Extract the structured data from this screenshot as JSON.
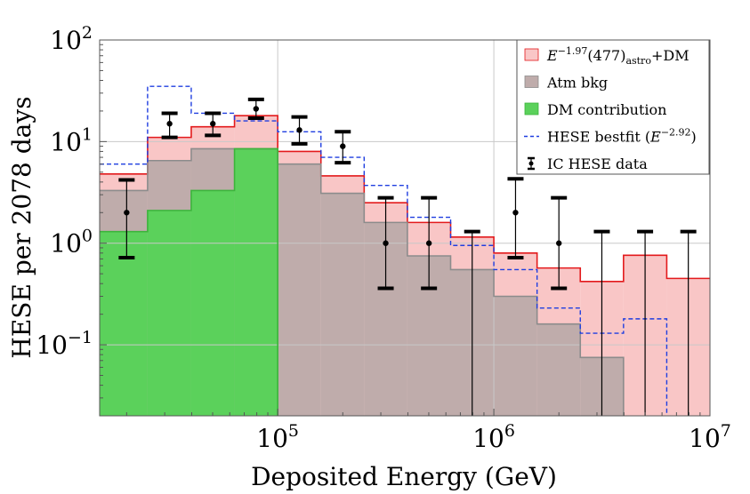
{
  "chart_data": {
    "type": "bar",
    "title": "",
    "xlabel": "Deposited Energy (GeV)",
    "ylabel": "HESE per 2078 days",
    "xscale": "log",
    "yscale": "log",
    "xlim": [
      15000,
      10000000
    ],
    "ylim": [
      0.02,
      100
    ],
    "grid": true,
    "legend_position": "top-right",
    "x_ticks": [
      {
        "value": 100000,
        "base": "10",
        "exp": "5"
      },
      {
        "value": 1000000,
        "base": "10",
        "exp": "6"
      },
      {
        "value": 10000000,
        "base": "10",
        "exp": "7"
      }
    ],
    "y_ticks": [
      {
        "value": 100,
        "base": "10",
        "exp": "2"
      },
      {
        "value": 10,
        "base": "10",
        "exp": "1"
      },
      {
        "value": 1,
        "base": "10",
        "exp": "0"
      },
      {
        "value": 0.1,
        "base": "10",
        "exp": "−1"
      }
    ],
    "bin_edges": [
      15000,
      25000,
      39800,
      63100,
      100000,
      158500,
      251200,
      398100,
      631000,
      1000000,
      1585000,
      2512000,
      3981000,
      6310000,
      10000000
    ],
    "series": [
      {
        "name": "E^{-1.97}(477)_astro+DM",
        "kind": "filled-step",
        "color": "#f9c6c6",
        "edge_color": "#e31a1c",
        "values": [
          4.8,
          11,
          14,
          18,
          8,
          4.6,
          2.5,
          1.6,
          1.15,
          0.8,
          0.57,
          0.42,
          0.76,
          0.45
        ]
      },
      {
        "name": "Atm bkg",
        "kind": "filled-step",
        "color": "#bfacab",
        "edge_color": "#8c8c8c",
        "values": [
          3.3,
          6.5,
          8.5,
          8.5,
          6.0,
          3.1,
          1.6,
          0.75,
          0.55,
          0.3,
          0.16,
          0.075,
          null,
          null
        ]
      },
      {
        "name": "DM contribution",
        "kind": "filled-step",
        "color": "#5bd15b",
        "edge_color": "#3cb43c",
        "values": [
          1.3,
          2.1,
          3.3,
          8.5,
          null,
          null,
          null,
          null,
          null,
          null,
          null,
          null,
          null,
          null
        ]
      },
      {
        "name": "HESE bestfit (E^{-2.92})",
        "kind": "dashed-step",
        "color": "#1f3ee0",
        "values": [
          6,
          35,
          19,
          16,
          12.5,
          7,
          3.7,
          1.8,
          0.95,
          0.55,
          0.23,
          0.13,
          0.18,
          null
        ]
      }
    ],
    "data_points": {
      "name": "IC HESE data",
      "points": [
        {
          "x": 20000,
          "y": 2,
          "lo": 0.72,
          "hi": 4.2
        },
        {
          "x": 31600,
          "y": 15,
          "lo": 11,
          "hi": 19
        },
        {
          "x": 50100,
          "y": 15,
          "lo": 11.5,
          "hi": 19
        },
        {
          "x": 79400,
          "y": 21,
          "lo": 17,
          "hi": 26
        },
        {
          "x": 126000,
          "y": 13,
          "lo": 9.5,
          "hi": 17.5
        },
        {
          "x": 200000,
          "y": 9,
          "lo": 6.2,
          "hi": 12.5
        },
        {
          "x": 316000,
          "y": 1,
          "lo": 0.36,
          "hi": 2.8
        },
        {
          "x": 501000,
          "y": 1,
          "lo": 0.36,
          "hi": 2.8
        },
        {
          "x": 794000,
          "y": null,
          "lo": null,
          "hi": 1.3
        },
        {
          "x": 1260000,
          "y": 2,
          "lo": 0.72,
          "hi": 4.3
        },
        {
          "x": 2000000,
          "y": 1,
          "lo": 0.36,
          "hi": 2.8
        },
        {
          "x": 3160000,
          "y": null,
          "lo": null,
          "hi": 1.3
        },
        {
          "x": 5010000,
          "y": null,
          "lo": null,
          "hi": 1.3
        },
        {
          "x": 7940000,
          "y": null,
          "lo": null,
          "hi": 1.3
        }
      ]
    },
    "legend": [
      {
        "key": "astro",
        "swatch": "fill",
        "color": "#f9c6c6",
        "edge": "#e31a1c",
        "text_main": "E",
        "text_sup": "−1.97",
        "text_mid": "(477)",
        "text_sub": "astro",
        "text_end": "+DM"
      },
      {
        "key": "atm",
        "swatch": "fill",
        "color": "#bfacab",
        "edge": "#8c8c8c",
        "text": "Atm bkg"
      },
      {
        "key": "dm",
        "swatch": "fill",
        "color": "#5bd15b",
        "edge": "#3cb43c",
        "text": "DM contribution"
      },
      {
        "key": "bestfit",
        "swatch": "dash",
        "color": "#1f3ee0",
        "text_main": "HESE bestfit (",
        "text_e": "E",
        "text_sup": "−2.92",
        "text_end": ")"
      },
      {
        "key": "data",
        "swatch": "errorbar",
        "color": "#000000",
        "text": "IC HESE data"
      }
    ]
  }
}
